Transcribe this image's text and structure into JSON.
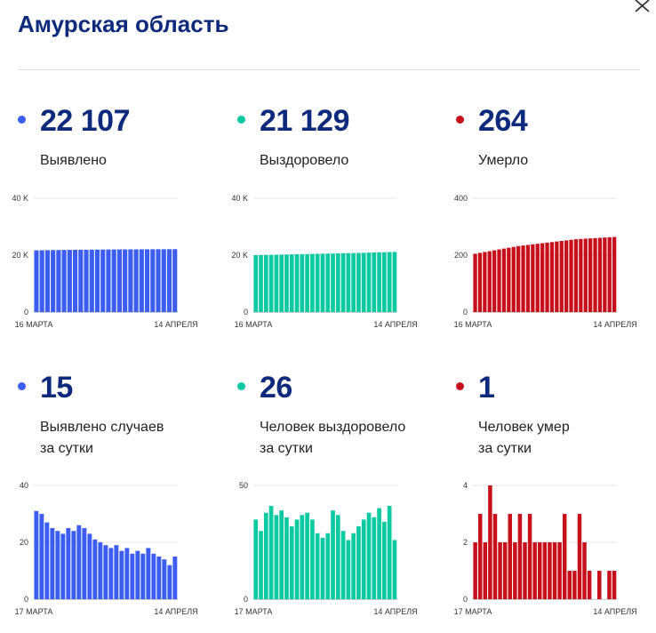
{
  "header": {
    "title": "Амурская область"
  },
  "icons": {
    "close": "close-icon"
  },
  "colors": {
    "detected": "#3b5ef0",
    "recovered": "#0bc9a0",
    "deaths": "#c8101b",
    "title": "#0d2a7d"
  },
  "stats": [
    {
      "value": "22 107",
      "label1": "Выявлено",
      "label2": ""
    },
    {
      "value": "21 129",
      "label1": "Выздоровело",
      "label2": ""
    },
    {
      "value": "264",
      "label1": "Умерло",
      "label2": ""
    },
    {
      "value": "15",
      "label1": "Выявлено случаев",
      "label2": "за сутки"
    },
    {
      "value": "26",
      "label1": "Человек выздоровело",
      "label2": "за сутки"
    },
    {
      "value": "1",
      "label1": "Человек умер",
      "label2": "за сутки"
    }
  ],
  "chart_data": [
    {
      "type": "bar",
      "series_key": "detected",
      "color": "#3b5ef0",
      "ylim": [
        0,
        40000
      ],
      "yticks": [
        "0",
        "20 K",
        "40 K"
      ],
      "ytick_values": [
        0,
        20000,
        40000
      ],
      "x_start": "16 МАРТА",
      "x_end": "14 АПРЕЛЯ",
      "grid": true,
      "values": [
        21700,
        21730,
        21760,
        21790,
        21810,
        21830,
        21860,
        21880,
        21900,
        21920,
        21940,
        21960,
        21970,
        21990,
        22000,
        22010,
        22020,
        22030,
        22040,
        22050,
        22060,
        22070,
        22080,
        22090,
        22100,
        22107
      ]
    },
    {
      "type": "bar",
      "series_key": "recovered",
      "color": "#0bc9a0",
      "ylim": [
        0,
        40000
      ],
      "yticks": [
        "0",
        "20 K",
        "40 K"
      ],
      "ytick_values": [
        0,
        20000,
        40000
      ],
      "x_start": "16 МАРТА",
      "x_end": "14 АПРЕЛЯ",
      "grid": true,
      "values": [
        20000,
        20030,
        20070,
        20110,
        20150,
        20190,
        20230,
        20270,
        20310,
        20350,
        20390,
        20430,
        20470,
        20510,
        20550,
        20590,
        20630,
        20670,
        20710,
        20750,
        20790,
        20830,
        20880,
        20940,
        21000,
        21040,
        21080,
        21129
      ]
    },
    {
      "type": "bar",
      "series_key": "deaths",
      "color": "#c8101b",
      "ylim": [
        0,
        400
      ],
      "yticks": [
        "0",
        "200",
        "400"
      ],
      "ytick_values": [
        0,
        200,
        400
      ],
      "x_start": "16 МАРТА",
      "x_end": "14 АПРЕЛЯ",
      "grid": true,
      "values": [
        205,
        208,
        211,
        214,
        217,
        220,
        223,
        226,
        229,
        232,
        234,
        236,
        238,
        240,
        242,
        244,
        246,
        248,
        250,
        252,
        254,
        256,
        257,
        258,
        259,
        260,
        261,
        262,
        263,
        264
      ]
    },
    {
      "type": "bar",
      "series_key": "detected",
      "color": "#3b5ef0",
      "ylim": [
        0,
        40
      ],
      "yticks": [
        "0",
        "20",
        "40"
      ],
      "ytick_values": [
        0,
        20,
        40
      ],
      "x_start": "17 МАРТА",
      "x_end": "14 АПРЕЛЯ",
      "grid": true,
      "values": [
        31,
        30,
        27,
        25,
        24,
        23,
        25,
        24,
        26,
        25,
        23,
        21,
        20,
        19,
        18,
        19,
        17,
        18,
        16,
        17,
        16,
        18,
        16,
        15,
        14,
        12,
        15
      ]
    },
    {
      "type": "bar",
      "series_key": "recovered",
      "color": "#0bc9a0",
      "ylim": [
        0,
        50
      ],
      "yticks": [
        "0",
        "50"
      ],
      "ytick_values": [
        0,
        50
      ],
      "x_start": "17 МАРТА",
      "x_end": "14 АПРЕЛЯ",
      "grid": true,
      "values": [
        35,
        30,
        38,
        41,
        37,
        39,
        36,
        32,
        35,
        37,
        38,
        35,
        29,
        27,
        29,
        39,
        37,
        30,
        26,
        29,
        32,
        35,
        38,
        36,
        40,
        34,
        41,
        26
      ]
    },
    {
      "type": "bar",
      "series_key": "deaths",
      "color": "#c8101b",
      "ylim": [
        0,
        4
      ],
      "yticks": [
        "0",
        "2",
        "4"
      ],
      "ytick_values": [
        0,
        2,
        4
      ],
      "x_start": "17 МАРТА",
      "x_end": "14 АПРЕЛЯ",
      "grid": true,
      "values": [
        2,
        3,
        2,
        4,
        3,
        2,
        2,
        3,
        2,
        3,
        2,
        3,
        2,
        2,
        2,
        2,
        2,
        2,
        3,
        1,
        1,
        3,
        2,
        1,
        0,
        1,
        0,
        1,
        1
      ]
    }
  ]
}
